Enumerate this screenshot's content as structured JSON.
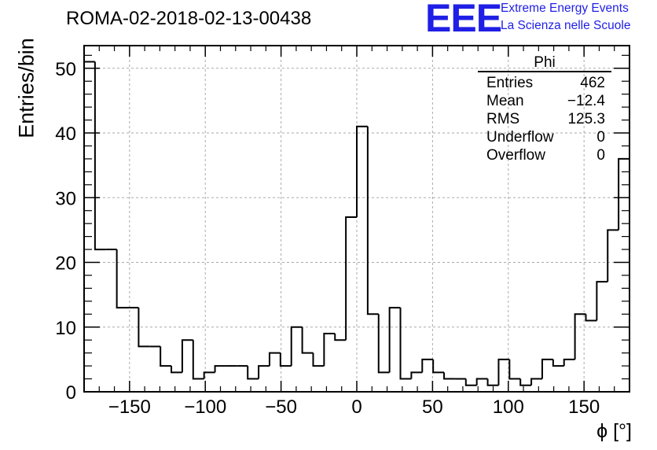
{
  "title": "ROMA-02-2018-02-13-00438",
  "logo": {
    "mark": "EEE",
    "line1": "Extreme Energy Events",
    "line2": "La Scienza nelle Scuole",
    "color": "#1f1fe6"
  },
  "stats": {
    "title": "Phi",
    "rows": [
      {
        "label": "Entries",
        "value": "462"
      },
      {
        "label": "Mean",
        "value": "−12.4"
      },
      {
        "label": "RMS",
        "value": "125.3"
      },
      {
        "label": "Underflow",
        "value": "0"
      },
      {
        "label": "Overflow",
        "value": "0"
      }
    ]
  },
  "chart_data": {
    "type": "bar",
    "style": "step-histogram",
    "title": "ROMA-02-2018-02-13-00438",
    "xlabel": "ϕ [°]",
    "ylabel": "Entries/bin",
    "xlim": [
      -180,
      180
    ],
    "ylim": [
      0,
      53.5
    ],
    "bin_width": 7.2,
    "bin_edges_start": -180,
    "values": [
      51,
      22,
      22,
      13,
      13,
      7,
      7,
      4,
      3,
      8,
      2,
      3,
      4,
      4,
      4,
      2,
      4,
      6,
      4,
      10,
      6,
      4,
      9,
      8,
      27,
      41,
      12,
      3,
      13,
      2,
      3,
      5,
      3,
      2,
      2,
      1,
      2,
      1,
      5,
      2,
      1,
      2,
      5,
      4,
      5,
      12,
      11,
      17,
      25,
      36
    ],
    "x_ticks": [
      "−150",
      "−100",
      "−50",
      "0",
      "50",
      "100",
      "150"
    ],
    "x_tick_values": [
      -150,
      -100,
      -50,
      0,
      50,
      100,
      150
    ],
    "y_ticks": [
      "0",
      "10",
      "20",
      "30",
      "40",
      "50"
    ],
    "y_tick_values": [
      0,
      10,
      20,
      30,
      40,
      50
    ],
    "grid": true,
    "line_color": "#000000",
    "grid_color": "#aaaaaa"
  }
}
